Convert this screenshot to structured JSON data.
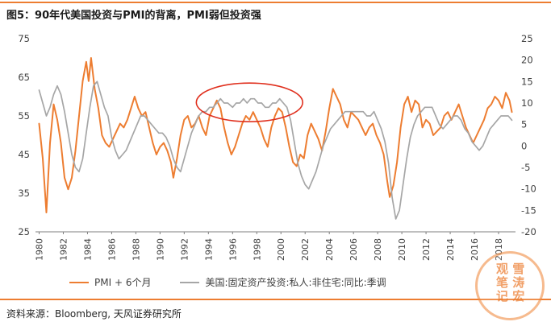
{
  "figure": {
    "title": "图5：90年代美国投资与PMI的背离，PMI弱但投资强",
    "source": "资料来源：Bloomberg, 天风证券研究所",
    "watermark": "雪涛宏观笔记"
  },
  "colors": {
    "accent": "#ED7D31",
    "pmi_line": "#ED7D31",
    "investment_line": "#A6A6A6",
    "annotation": "#E0301E",
    "axis": "#7f7f7f",
    "tick_text": "#404040"
  },
  "legend": [
    {
      "label": "PMI + 6个月",
      "color": "#ED7D31"
    },
    {
      "label": "美国:固定资产投资:私人:非住宅:同比:季调",
      "color": "#A6A6A6"
    }
  ],
  "chart_data": {
    "type": "line",
    "title": "90年代美国投资与PMI的背离，PMI弱但投资强",
    "xlim": [
      1979.7,
      2019.4
    ],
    "x_ticks": [
      1980,
      1982,
      1984,
      1986,
      1988,
      1990,
      1992,
      1994,
      1996,
      1998,
      2000,
      2002,
      2004,
      2006,
      2008,
      2010,
      2012,
      2014,
      2016,
      2018
    ],
    "x_tick_rotation": 90,
    "ylim_left": [
      25,
      75
    ],
    "left_ticks": [
      25,
      35,
      45,
      55,
      65,
      75
    ],
    "ylim_right": [
      -20,
      25
    ],
    "right_ticks": [
      -20,
      -15,
      -10,
      -5,
      0,
      5,
      10,
      15,
      20,
      25
    ],
    "grid": false,
    "legend_position": "bottom",
    "series": [
      {
        "name": "PMI + 6个月",
        "axis": "left",
        "color": "#ED7D31",
        "points": [
          [
            1980.0,
            53
          ],
          [
            1980.3,
            44
          ],
          [
            1980.6,
            30
          ],
          [
            1980.9,
            48
          ],
          [
            1981.2,
            58
          ],
          [
            1981.5,
            54
          ],
          [
            1981.8,
            48
          ],
          [
            1982.1,
            39
          ],
          [
            1982.4,
            36
          ],
          [
            1982.7,
            39
          ],
          [
            1983.0,
            46
          ],
          [
            1983.3,
            55
          ],
          [
            1983.6,
            64
          ],
          [
            1983.9,
            69
          ],
          [
            1984.1,
            64
          ],
          [
            1984.3,
            70
          ],
          [
            1984.6,
            62
          ],
          [
            1984.9,
            57
          ],
          [
            1985.2,
            50
          ],
          [
            1985.5,
            48
          ],
          [
            1985.8,
            47
          ],
          [
            1986.1,
            49
          ],
          [
            1986.4,
            51
          ],
          [
            1986.7,
            53
          ],
          [
            1987.0,
            52
          ],
          [
            1987.3,
            54
          ],
          [
            1987.6,
            57
          ],
          [
            1987.9,
            60
          ],
          [
            1988.2,
            57
          ],
          [
            1988.5,
            55
          ],
          [
            1988.8,
            56
          ],
          [
            1989.1,
            52
          ],
          [
            1989.4,
            48
          ],
          [
            1989.7,
            45
          ],
          [
            1990.0,
            47
          ],
          [
            1990.3,
            48
          ],
          [
            1990.6,
            46
          ],
          [
            1990.9,
            43
          ],
          [
            1991.1,
            39
          ],
          [
            1991.4,
            44
          ],
          [
            1991.7,
            50
          ],
          [
            1992.0,
            54
          ],
          [
            1992.3,
            55
          ],
          [
            1992.6,
            52
          ],
          [
            1992.9,
            53
          ],
          [
            1993.2,
            55
          ],
          [
            1993.5,
            52
          ],
          [
            1993.8,
            50
          ],
          [
            1994.1,
            55
          ],
          [
            1994.4,
            57
          ],
          [
            1994.7,
            59
          ],
          [
            1995.0,
            57
          ],
          [
            1995.3,
            52
          ],
          [
            1995.6,
            48
          ],
          [
            1995.9,
            45
          ],
          [
            1996.2,
            47
          ],
          [
            1996.5,
            50
          ],
          [
            1996.8,
            53
          ],
          [
            1997.1,
            55
          ],
          [
            1997.4,
            54
          ],
          [
            1997.7,
            56
          ],
          [
            1998.0,
            54
          ],
          [
            1998.3,
            52
          ],
          [
            1998.6,
            49
          ],
          [
            1998.9,
            47
          ],
          [
            1999.2,
            52
          ],
          [
            1999.5,
            55
          ],
          [
            1999.8,
            57
          ],
          [
            2000.1,
            56
          ],
          [
            2000.4,
            52
          ],
          [
            2000.7,
            47
          ],
          [
            2001.0,
            43
          ],
          [
            2001.3,
            42
          ],
          [
            2001.6,
            45
          ],
          [
            2001.9,
            44
          ],
          [
            2002.2,
            50
          ],
          [
            2002.5,
            53
          ],
          [
            2002.8,
            51
          ],
          [
            2003.1,
            49
          ],
          [
            2003.4,
            46
          ],
          [
            2003.7,
            51
          ],
          [
            2004.0,
            57
          ],
          [
            2004.3,
            62
          ],
          [
            2004.6,
            60
          ],
          [
            2004.9,
            58
          ],
          [
            2005.2,
            54
          ],
          [
            2005.5,
            52
          ],
          [
            2005.8,
            56
          ],
          [
            2006.1,
            55
          ],
          [
            2006.4,
            54
          ],
          [
            2006.7,
            52
          ],
          [
            2007.0,
            50
          ],
          [
            2007.3,
            52
          ],
          [
            2007.6,
            53
          ],
          [
            2007.9,
            50
          ],
          [
            2008.2,
            48
          ],
          [
            2008.5,
            45
          ],
          [
            2008.8,
            38
          ],
          [
            2009.0,
            34
          ],
          [
            2009.3,
            37
          ],
          [
            2009.6,
            43
          ],
          [
            2009.9,
            52
          ],
          [
            2010.2,
            58
          ],
          [
            2010.5,
            60
          ],
          [
            2010.8,
            56
          ],
          [
            2011.1,
            59
          ],
          [
            2011.4,
            58
          ],
          [
            2011.7,
            52
          ],
          [
            2012.0,
            54
          ],
          [
            2012.3,
            53
          ],
          [
            2012.6,
            50
          ],
          [
            2012.9,
            51
          ],
          [
            2013.2,
            52
          ],
          [
            2013.5,
            55
          ],
          [
            2013.8,
            56
          ],
          [
            2014.1,
            54
          ],
          [
            2014.4,
            56
          ],
          [
            2014.7,
            58
          ],
          [
            2015.0,
            55
          ],
          [
            2015.3,
            52
          ],
          [
            2015.6,
            50
          ],
          [
            2015.9,
            48
          ],
          [
            2016.2,
            50
          ],
          [
            2016.5,
            52
          ],
          [
            2016.8,
            54
          ],
          [
            2017.1,
            57
          ],
          [
            2017.4,
            58
          ],
          [
            2017.7,
            60
          ],
          [
            2018.0,
            59
          ],
          [
            2018.3,
            57
          ],
          [
            2018.6,
            61
          ],
          [
            2018.9,
            59
          ],
          [
            2019.1,
            56
          ]
        ]
      },
      {
        "name": "美国:固定资产投资:私人:非住宅:同比:季调",
        "axis": "right",
        "color": "#A6A6A6",
        "points": [
          [
            1980.0,
            13
          ],
          [
            1980.3,
            10
          ],
          [
            1980.6,
            7
          ],
          [
            1980.9,
            9
          ],
          [
            1981.2,
            12
          ],
          [
            1981.5,
            14
          ],
          [
            1981.8,
            12
          ],
          [
            1982.1,
            8
          ],
          [
            1982.4,
            3
          ],
          [
            1982.7,
            -2
          ],
          [
            1983.0,
            -5
          ],
          [
            1983.3,
            -6
          ],
          [
            1983.6,
            -3
          ],
          [
            1983.9,
            3
          ],
          [
            1984.2,
            9
          ],
          [
            1984.5,
            14
          ],
          [
            1984.8,
            15
          ],
          [
            1985.1,
            12
          ],
          [
            1985.4,
            9
          ],
          [
            1985.7,
            7
          ],
          [
            1986.0,
            2
          ],
          [
            1986.3,
            -1
          ],
          [
            1986.6,
            -3
          ],
          [
            1986.9,
            -2
          ],
          [
            1987.2,
            -1
          ],
          [
            1987.5,
            1
          ],
          [
            1987.8,
            3
          ],
          [
            1988.1,
            5
          ],
          [
            1988.4,
            7
          ],
          [
            1988.7,
            7
          ],
          [
            1989.0,
            6
          ],
          [
            1989.3,
            5
          ],
          [
            1989.6,
            4
          ],
          [
            1989.9,
            3
          ],
          [
            1990.2,
            3
          ],
          [
            1990.5,
            2
          ],
          [
            1990.8,
            0
          ],
          [
            1991.1,
            -3
          ],
          [
            1991.4,
            -5
          ],
          [
            1991.7,
            -6
          ],
          [
            1992.0,
            -3
          ],
          [
            1992.3,
            0
          ],
          [
            1992.6,
            3
          ],
          [
            1992.9,
            5
          ],
          [
            1993.2,
            7
          ],
          [
            1993.5,
            8
          ],
          [
            1993.8,
            8
          ],
          [
            1994.1,
            9
          ],
          [
            1994.4,
            9
          ],
          [
            1994.7,
            10
          ],
          [
            1995.0,
            11
          ],
          [
            1995.3,
            10
          ],
          [
            1995.6,
            10
          ],
          [
            1996.0,
            9
          ],
          [
            1996.3,
            10
          ],
          [
            1996.6,
            10
          ],
          [
            1996.9,
            11
          ],
          [
            1997.2,
            10
          ],
          [
            1997.5,
            11
          ],
          [
            1997.8,
            11
          ],
          [
            1998.1,
            10
          ],
          [
            1998.4,
            10
          ],
          [
            1998.7,
            9
          ],
          [
            1999.0,
            9
          ],
          [
            1999.3,
            10
          ],
          [
            1999.6,
            10
          ],
          [
            1999.9,
            11
          ],
          [
            2000.2,
            10
          ],
          [
            2000.5,
            9
          ],
          [
            2000.8,
            6
          ],
          [
            2001.1,
            1
          ],
          [
            2001.4,
            -4
          ],
          [
            2001.7,
            -7
          ],
          [
            2002.0,
            -9
          ],
          [
            2002.3,
            -10
          ],
          [
            2002.6,
            -8
          ],
          [
            2002.9,
            -6
          ],
          [
            2003.2,
            -3
          ],
          [
            2003.5,
            0
          ],
          [
            2003.8,
            2
          ],
          [
            2004.1,
            4
          ],
          [
            2004.4,
            5
          ],
          [
            2004.7,
            6
          ],
          [
            2005.0,
            7
          ],
          [
            2005.3,
            8
          ],
          [
            2005.6,
            8
          ],
          [
            2005.9,
            8
          ],
          [
            2006.2,
            8
          ],
          [
            2006.5,
            8
          ],
          [
            2006.8,
            8
          ],
          [
            2007.1,
            7
          ],
          [
            2007.4,
            7
          ],
          [
            2007.7,
            8
          ],
          [
            2008.0,
            6
          ],
          [
            2008.3,
            4
          ],
          [
            2008.6,
            1
          ],
          [
            2008.9,
            -4
          ],
          [
            2009.2,
            -12
          ],
          [
            2009.5,
            -17
          ],
          [
            2009.8,
            -15
          ],
          [
            2010.1,
            -9
          ],
          [
            2010.4,
            -3
          ],
          [
            2010.7,
            2
          ],
          [
            2011.0,
            5
          ],
          [
            2011.3,
            7
          ],
          [
            2011.6,
            8
          ],
          [
            2011.9,
            9
          ],
          [
            2012.2,
            9
          ],
          [
            2012.5,
            9
          ],
          [
            2012.8,
            7
          ],
          [
            2013.1,
            5
          ],
          [
            2013.4,
            4
          ],
          [
            2013.7,
            5
          ],
          [
            2014.0,
            6
          ],
          [
            2014.3,
            7
          ],
          [
            2014.6,
            7
          ],
          [
            2014.9,
            6
          ],
          [
            2015.2,
            4
          ],
          [
            2015.5,
            3
          ],
          [
            2015.8,
            1
          ],
          [
            2016.1,
            0
          ],
          [
            2016.4,
            -1
          ],
          [
            2016.7,
            0
          ],
          [
            2017.0,
            2
          ],
          [
            2017.3,
            4
          ],
          [
            2017.6,
            5
          ],
          [
            2017.9,
            6
          ],
          [
            2018.2,
            7
          ],
          [
            2018.5,
            7
          ],
          [
            2018.8,
            7
          ],
          [
            2019.1,
            6
          ]
        ]
      }
    ],
    "annotation": {
      "type": "ellipse",
      "axis": "left",
      "cx": 1997.4,
      "cy": 58.5,
      "rx": 4.4,
      "ry": 5.0,
      "color": "#E0301E",
      "meaning": "highlights 1990s divergence: PMI weak but investment strong"
    }
  }
}
